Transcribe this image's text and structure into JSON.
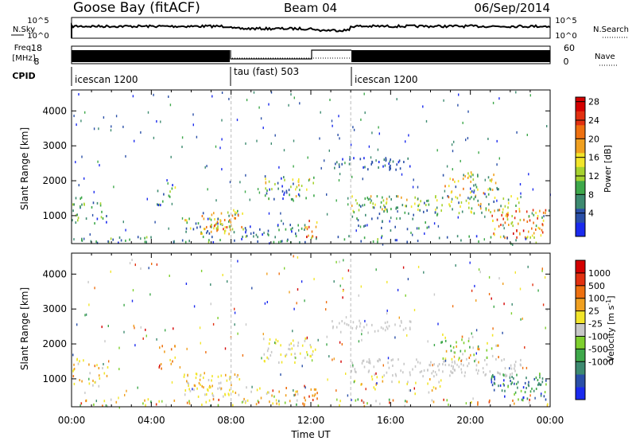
{
  "header": {
    "title": "Goose Bay (fitACF)",
    "beam": "Beam 04",
    "date": "06/Sep/2014"
  },
  "top_panels": {
    "nsky_label": "N.Sky",
    "nsky_ticks": [
      "10^5",
      "10^0"
    ],
    "nsearch_label": "N.Search",
    "freq_label_1": "Freq.",
    "freq_label_2": "[MHz]",
    "freq_ticks": [
      "18",
      "8"
    ],
    "nave_label": "Nave",
    "nave_ticks": [
      "60",
      "0"
    ],
    "cpid_label": "CPID",
    "cpid_segments": [
      {
        "label": "icescan 1200",
        "start": 0,
        "end": 8
      },
      {
        "label": "tau (fast) 503",
        "start": 8,
        "end": 14
      },
      {
        "label": "icescan 1200",
        "start": 14,
        "end": 24
      }
    ]
  },
  "chart_data": [
    {
      "type": "heatmap",
      "title": "Power",
      "ylabel": "Slant Range [km]",
      "xlabel": "",
      "xlim": [
        0,
        24
      ],
      "ylim": [
        200,
        4600
      ],
      "yticks": [
        1000,
        2000,
        3000,
        4000
      ],
      "xticks": [
        "00:00",
        "04:00",
        "08:00",
        "12:00",
        "16:00",
        "20:00",
        "00:00"
      ],
      "colorbar_label": "Power [dB]",
      "colorbar_ticks": [
        "4",
        "8",
        "12",
        "16",
        "20",
        "24",
        "28"
      ],
      "colors": [
        "#1a2aee",
        "#2a4fa8",
        "#3d8a70",
        "#3ea84a",
        "#a6d22e",
        "#f2e52a",
        "#f0a020",
        "#ee7010",
        "#e23010",
        "#d40000"
      ],
      "regions": [
        {
          "t0": 0,
          "t1": 1.8,
          "r0": 800,
          "r1": 1600,
          "density": 0.35,
          "vmin": 0,
          "vmax": 4
        },
        {
          "t0": 4.2,
          "t1": 5.2,
          "r0": 1300,
          "r1": 2000,
          "density": 0.3,
          "vmin": 0,
          "vmax": 5
        },
        {
          "t0": 5.6,
          "t1": 8.6,
          "r0": 500,
          "r1": 1200,
          "density": 0.55,
          "vmin": 0,
          "vmax": 7
        },
        {
          "t0": 6.5,
          "t1": 8.0,
          "r0": 600,
          "r1": 900,
          "density": 0.6,
          "vmin": 5,
          "vmax": 8
        },
        {
          "t0": 8.5,
          "t1": 11.8,
          "r0": 300,
          "r1": 800,
          "density": 0.3,
          "vmin": 0,
          "vmax": 3
        },
        {
          "t0": 9.6,
          "t1": 12.2,
          "r0": 1500,
          "r1": 2200,
          "density": 0.45,
          "vmin": 0,
          "vmax": 6
        },
        {
          "t0": 11.6,
          "t1": 12.3,
          "r0": 400,
          "r1": 900,
          "density": 0.6,
          "vmin": 5,
          "vmax": 9
        },
        {
          "t0": 13.0,
          "t1": 17.0,
          "r0": 2350,
          "r1": 2700,
          "density": 0.5,
          "vmin": 0,
          "vmax": 2
        },
        {
          "t0": 14.0,
          "t1": 22.5,
          "r0": 1100,
          "r1": 1600,
          "density": 0.5,
          "vmin": 1,
          "vmax": 6
        },
        {
          "t0": 14.0,
          "t1": 18.5,
          "r0": 600,
          "r1": 1100,
          "density": 0.2,
          "vmin": 0,
          "vmax": 3
        },
        {
          "t0": 18.5,
          "t1": 21.5,
          "r0": 1500,
          "r1": 2300,
          "density": 0.35,
          "vmin": 1,
          "vmax": 7
        },
        {
          "t0": 21.0,
          "t1": 23.8,
          "r0": 400,
          "r1": 1200,
          "density": 0.55,
          "vmin": 3,
          "vmax": 9
        },
        {
          "t0": 0,
          "t1": 24,
          "r0": 250,
          "r1": 450,
          "density": 0.25,
          "vmin": 0,
          "vmax": 4
        }
      ]
    },
    {
      "type": "heatmap",
      "title": "Velocity",
      "ylabel": "Slant Range [km]",
      "xlabel": "Time UT",
      "xlim": [
        0,
        24
      ],
      "ylim": [
        200,
        4600
      ],
      "yticks": [
        1000,
        2000,
        3000,
        4000
      ],
      "xticks": [
        "00:00",
        "04:00",
        "08:00",
        "12:00",
        "16:00",
        "20:00",
        "00:00"
      ],
      "colorbar_label": "Velocity [m s^-1]",
      "colorbar_ticks": [
        "1000",
        "500",
        "100",
        "25",
        "-25",
        "-100",
        "-500",
        "-1000"
      ],
      "colors": [
        "#1a2aee",
        "#2a4fa8",
        "#3d8a70",
        "#3ea84a",
        "#7ecf2e",
        "#c8c8c8",
        "#f2e52a",
        "#f0a020",
        "#ee7010",
        "#e23010",
        "#d40000"
      ],
      "regions": [
        {
          "t0": 0,
          "t1": 1.8,
          "r0": 800,
          "r1": 1600,
          "density": 0.35,
          "vmin": 5,
          "vmax": 8
        },
        {
          "t0": 4.2,
          "t1": 5.2,
          "r0": 1300,
          "r1": 2000,
          "density": 0.3,
          "vmin": 6,
          "vmax": 9
        },
        {
          "t0": 5.6,
          "t1": 8.6,
          "r0": 500,
          "r1": 1200,
          "density": 0.55,
          "vmin": 5,
          "vmax": 7
        },
        {
          "t0": 8.5,
          "t1": 11.8,
          "r0": 300,
          "r1": 800,
          "density": 0.3,
          "vmin": 4,
          "vmax": 9
        },
        {
          "t0": 9.6,
          "t1": 12.2,
          "r0": 1500,
          "r1": 2200,
          "density": 0.45,
          "vmin": 5,
          "vmax": 6
        },
        {
          "t0": 11.6,
          "t1": 12.3,
          "r0": 400,
          "r1": 900,
          "density": 0.6,
          "vmin": 6,
          "vmax": 9
        },
        {
          "t0": 13.0,
          "t1": 17.0,
          "r0": 2350,
          "r1": 2700,
          "density": 0.5,
          "vmin": 5,
          "vmax": 5
        },
        {
          "t0": 14.0,
          "t1": 22.5,
          "r0": 1100,
          "r1": 1600,
          "density": 0.5,
          "vmin": 5,
          "vmax": 5
        },
        {
          "t0": 14.0,
          "t1": 18.5,
          "r0": 600,
          "r1": 1100,
          "density": 0.2,
          "vmin": 5,
          "vmax": 7
        },
        {
          "t0": 18.5,
          "t1": 21.5,
          "r0": 1500,
          "r1": 2300,
          "density": 0.35,
          "vmin": 3,
          "vmax": 8
        },
        {
          "t0": 21.0,
          "t1": 23.8,
          "r0": 400,
          "r1": 1200,
          "density": 0.55,
          "vmin": 0,
          "vmax": 4
        },
        {
          "t0": 0,
          "t1": 24,
          "r0": 250,
          "r1": 450,
          "density": 0.25,
          "vmin": 3,
          "vmax": 9
        }
      ]
    }
  ]
}
